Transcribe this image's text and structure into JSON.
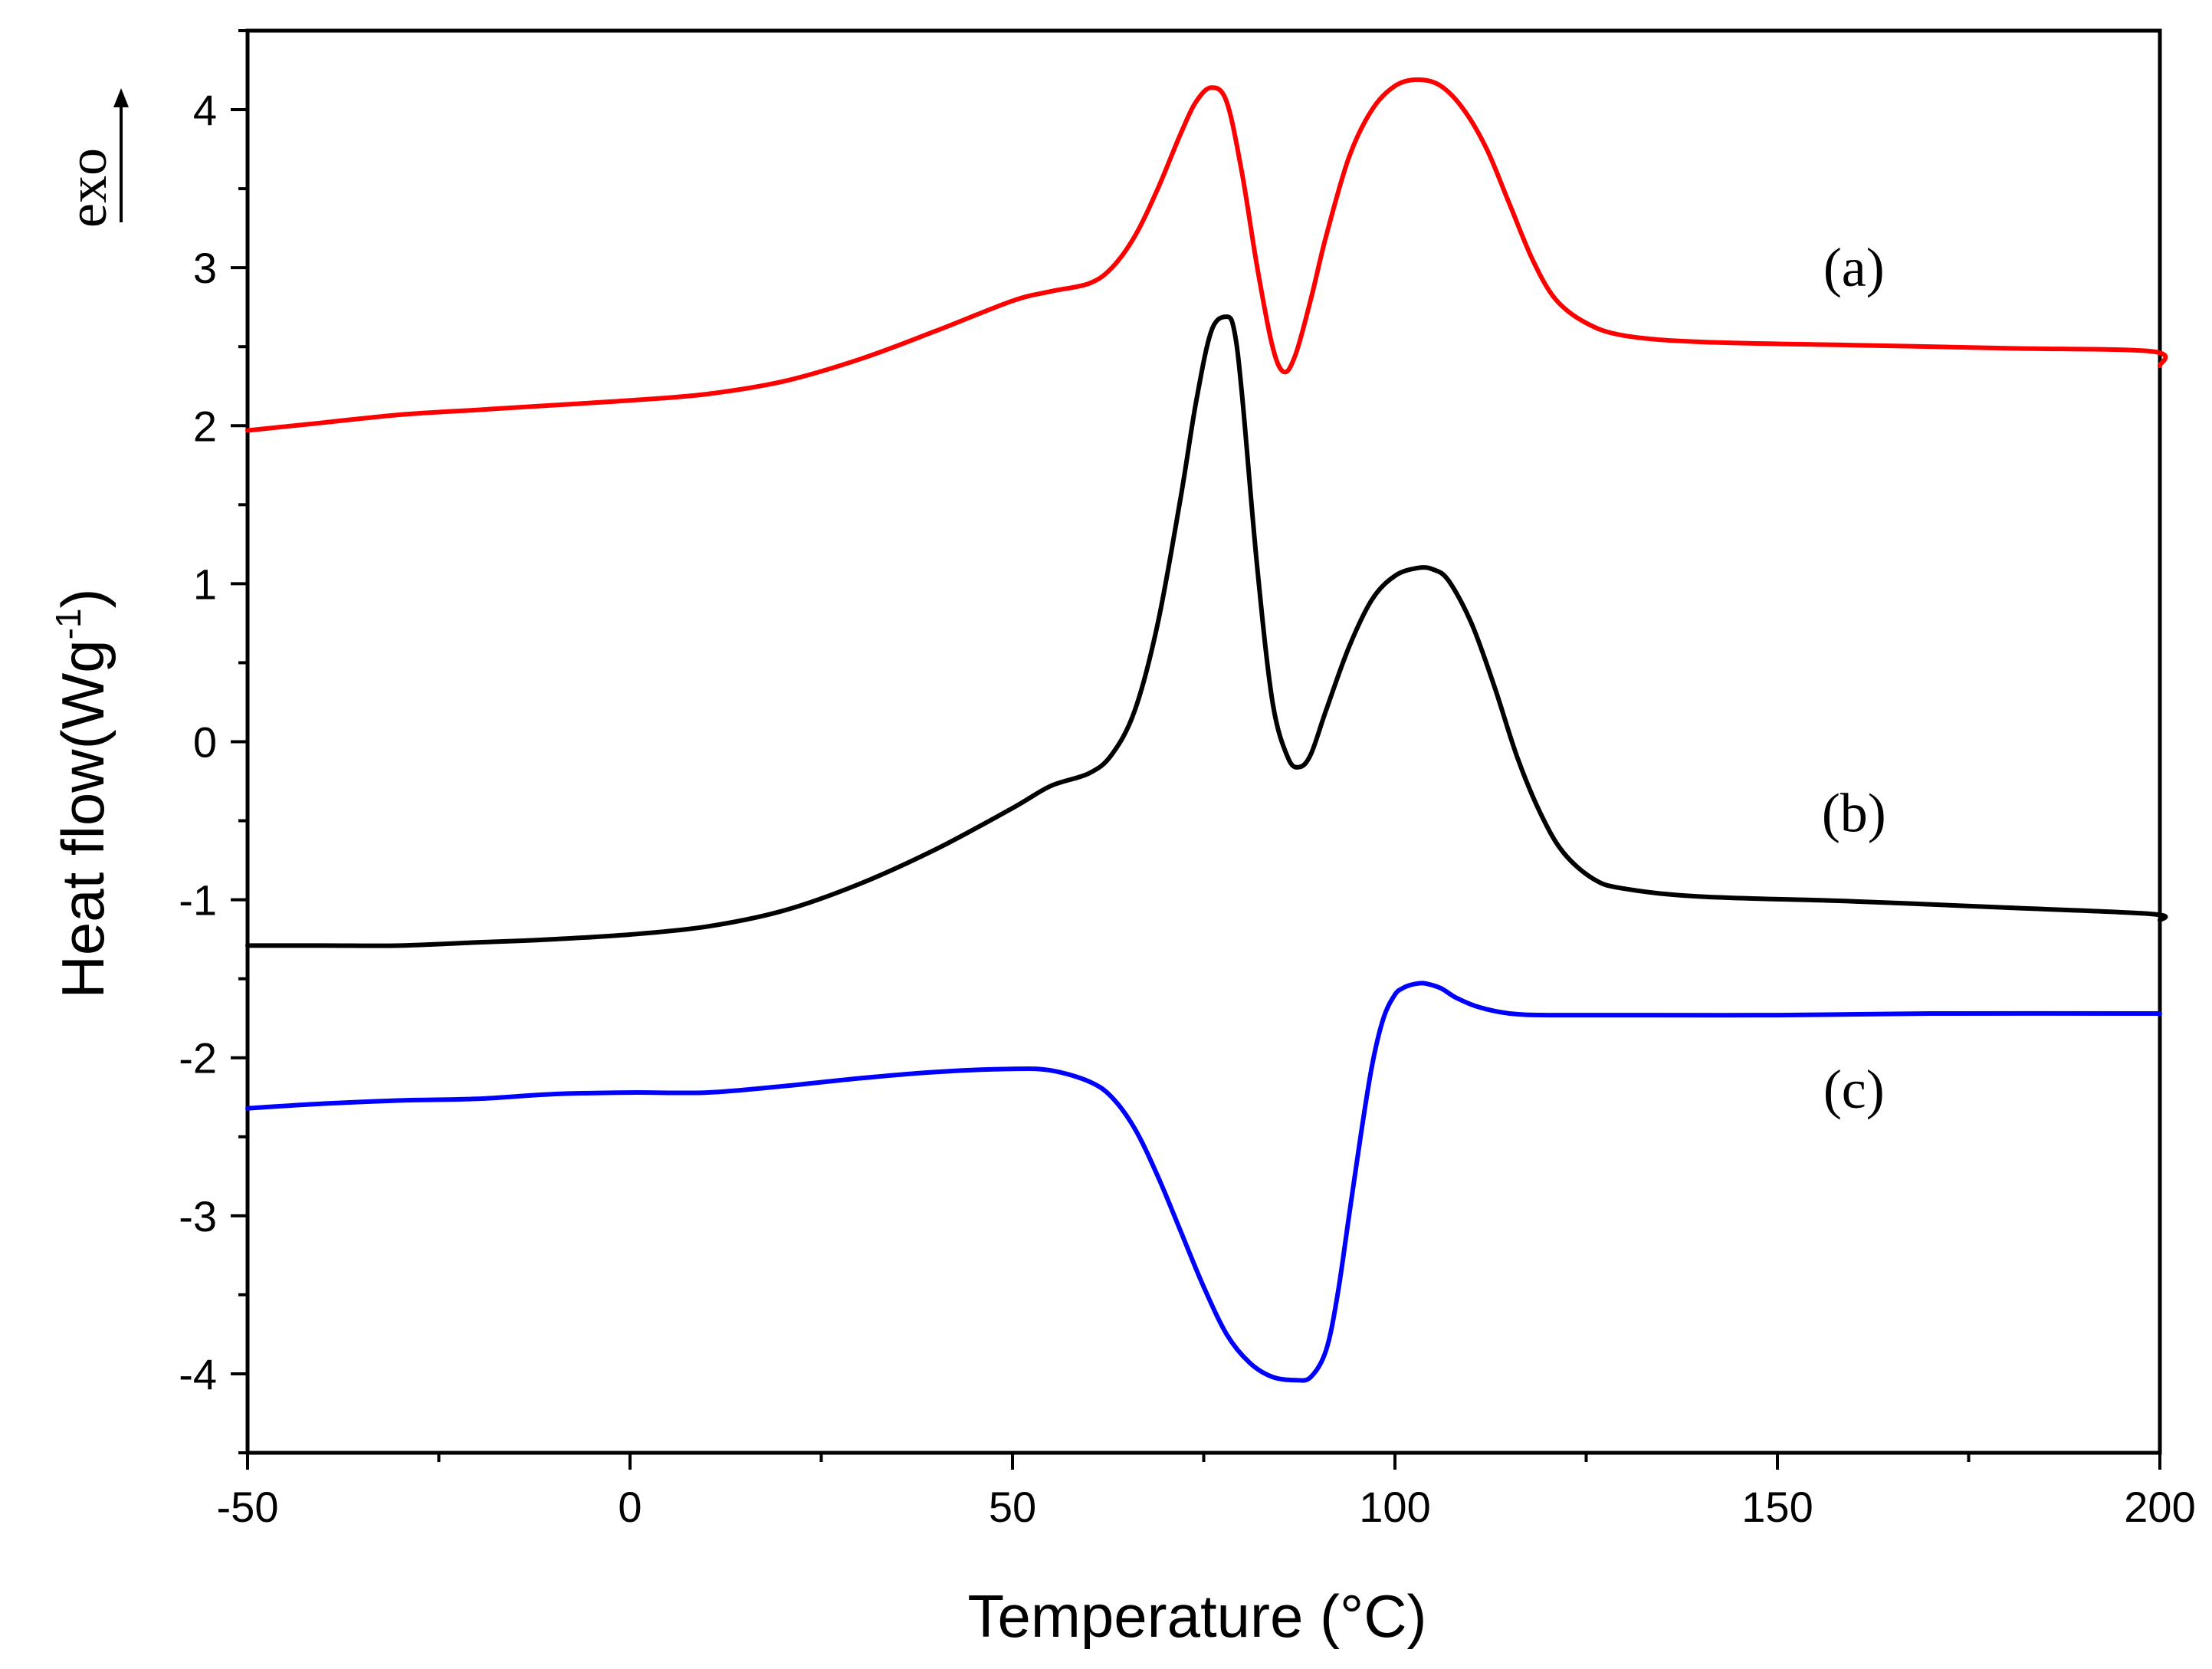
{
  "chart_data": {
    "type": "line",
    "title": "",
    "xlabel": "Temperature (°C)",
    "ylabel_main": "Heat flow(Wg",
    "ylabel_sup": "-1",
    "ylabel_close": ")",
    "exo_label": "exo",
    "xlim": [
      -50,
      200
    ],
    "ylim": [
      -4.5,
      4.5
    ],
    "x_ticks": [
      -50,
      0,
      50,
      100,
      150,
      200
    ],
    "x_tick_labels": [
      "-50",
      "0",
      "50",
      "100",
      "150",
      "200"
    ],
    "y_ticks": [
      -4,
      -3,
      -2,
      -1,
      0,
      1,
      2,
      3,
      4
    ],
    "y_tick_labels": [
      "-4",
      "-3",
      "-2",
      "-1",
      "0",
      "1",
      "2",
      "3",
      "4"
    ],
    "grid": false,
    "series": [
      {
        "name": "(a)",
        "label": "(a)",
        "label_at": [
          160,
          3.0
        ],
        "color": "#ff0000",
        "x": [
          -50,
          -40,
          -30,
          -20,
          -10,
          0,
          10,
          20,
          30,
          40,
          50,
          55,
          60,
          63,
          66,
          69,
          72,
          74,
          76,
          78,
          80,
          82,
          84,
          85.5,
          87,
          89,
          91,
          94,
          97,
          100,
          103,
          106,
          109,
          112,
          115,
          118,
          121,
          125,
          130,
          140,
          160,
          180,
          199,
          200
        ],
        "y": [
          1.97,
          2.02,
          2.07,
          2.1,
          2.13,
          2.16,
          2.2,
          2.28,
          2.42,
          2.6,
          2.79,
          2.85,
          2.9,
          3.0,
          3.2,
          3.5,
          3.85,
          4.05,
          4.14,
          4.05,
          3.6,
          3.0,
          2.5,
          2.34,
          2.45,
          2.8,
          3.2,
          3.7,
          4.0,
          4.15,
          4.19,
          4.15,
          4.0,
          3.75,
          3.4,
          3.05,
          2.8,
          2.65,
          2.57,
          2.53,
          2.51,
          2.49,
          2.47,
          2.38
        ]
      },
      {
        "name": "(b)",
        "label": "(b)",
        "label_at": [
          160,
          -0.45
        ],
        "color": "#000000",
        "x": [
          -50,
          -40,
          -30,
          -20,
          -10,
          0,
          10,
          20,
          30,
          40,
          50,
          55,
          60,
          63,
          66,
          69,
          72,
          74,
          76,
          78,
          79,
          80,
          82,
          84,
          86,
          87.5,
          89,
          91,
          94,
          97,
          100,
          103,
          105,
          107,
          110,
          113,
          116,
          119,
          122,
          126,
          130,
          140,
          160,
          180,
          199,
          200
        ],
        "y": [
          -1.29,
          -1.29,
          -1.29,
          -1.27,
          -1.25,
          -1.22,
          -1.17,
          -1.07,
          -0.9,
          -0.68,
          -0.42,
          -0.28,
          -0.2,
          -0.08,
          0.2,
          0.75,
          1.55,
          2.15,
          2.6,
          2.69,
          2.6,
          2.2,
          1.1,
          0.25,
          -0.1,
          -0.16,
          -0.08,
          0.2,
          0.6,
          0.9,
          1.05,
          1.1,
          1.09,
          1.02,
          0.75,
          0.35,
          -0.1,
          -0.45,
          -0.7,
          -0.87,
          -0.93,
          -0.98,
          -1.01,
          -1.05,
          -1.09,
          -1.13
        ]
      },
      {
        "name": "(c)",
        "label": "(c)",
        "label_at": [
          160,
          -2.2
        ],
        "color": "#0000ff",
        "x": [
          -50,
          -40,
          -30,
          -20,
          -10,
          0,
          10,
          20,
          30,
          40,
          50,
          55,
          60,
          63,
          66,
          69,
          72,
          75,
          78,
          81,
          84,
          87,
          89,
          91,
          92.5,
          94,
          95.5,
          97,
          98.5,
          100,
          101,
          102,
          103,
          104,
          106,
          108,
          111,
          115,
          120,
          130,
          150,
          170,
          200
        ],
        "y": [
          -2.32,
          -2.29,
          -2.27,
          -2.26,
          -2.23,
          -2.22,
          -2.22,
          -2.18,
          -2.13,
          -2.09,
          -2.07,
          -2.08,
          -2.15,
          -2.25,
          -2.45,
          -2.75,
          -3.1,
          -3.45,
          -3.75,
          -3.93,
          -4.02,
          -4.04,
          -4.02,
          -3.85,
          -3.5,
          -3.0,
          -2.5,
          -2.05,
          -1.75,
          -1.6,
          -1.56,
          -1.54,
          -1.53,
          -1.53,
          -1.56,
          -1.62,
          -1.68,
          -1.72,
          -1.73,
          -1.73,
          -1.73,
          -1.72,
          -1.72
        ]
      }
    ]
  }
}
